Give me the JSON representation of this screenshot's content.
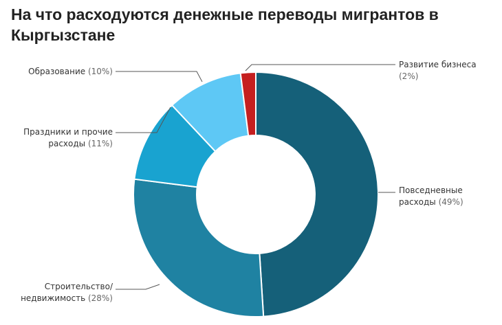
{
  "chart_data": {
    "type": "pie",
    "variant": "donut",
    "title": "На что расходуются денежные переводы мигрантов в Кыргызстане",
    "slices": [
      {
        "label": "Повседневные расходы",
        "label_lines": [
          "Повседневные",
          "расходы"
        ],
        "value": 49,
        "value_text": "(49%)",
        "color": "#156079"
      },
      {
        "label": "Строительство/ недвижимость",
        "label_lines": [
          "Строительство/",
          "недвижимость"
        ],
        "value": 28,
        "value_text": "(28%)",
        "color": "#1f82a2"
      },
      {
        "label": "Праздники и прочие расходы",
        "label_lines": [
          "Праздники и прочие",
          "расходы"
        ],
        "value": 11,
        "value_text": "(11%)",
        "color": "#19a3d0"
      },
      {
        "label": "Образование",
        "label_lines": [
          "Образование"
        ],
        "value": 10,
        "value_text": "(10%)",
        "color": "#5ec8f5"
      },
      {
        "label": "Развитие бизнеса",
        "label_lines": [
          "Развитие бизнеса"
        ],
        "value": 2,
        "value_text": "(2%)",
        "color": "#c51f1f"
      }
    ]
  }
}
